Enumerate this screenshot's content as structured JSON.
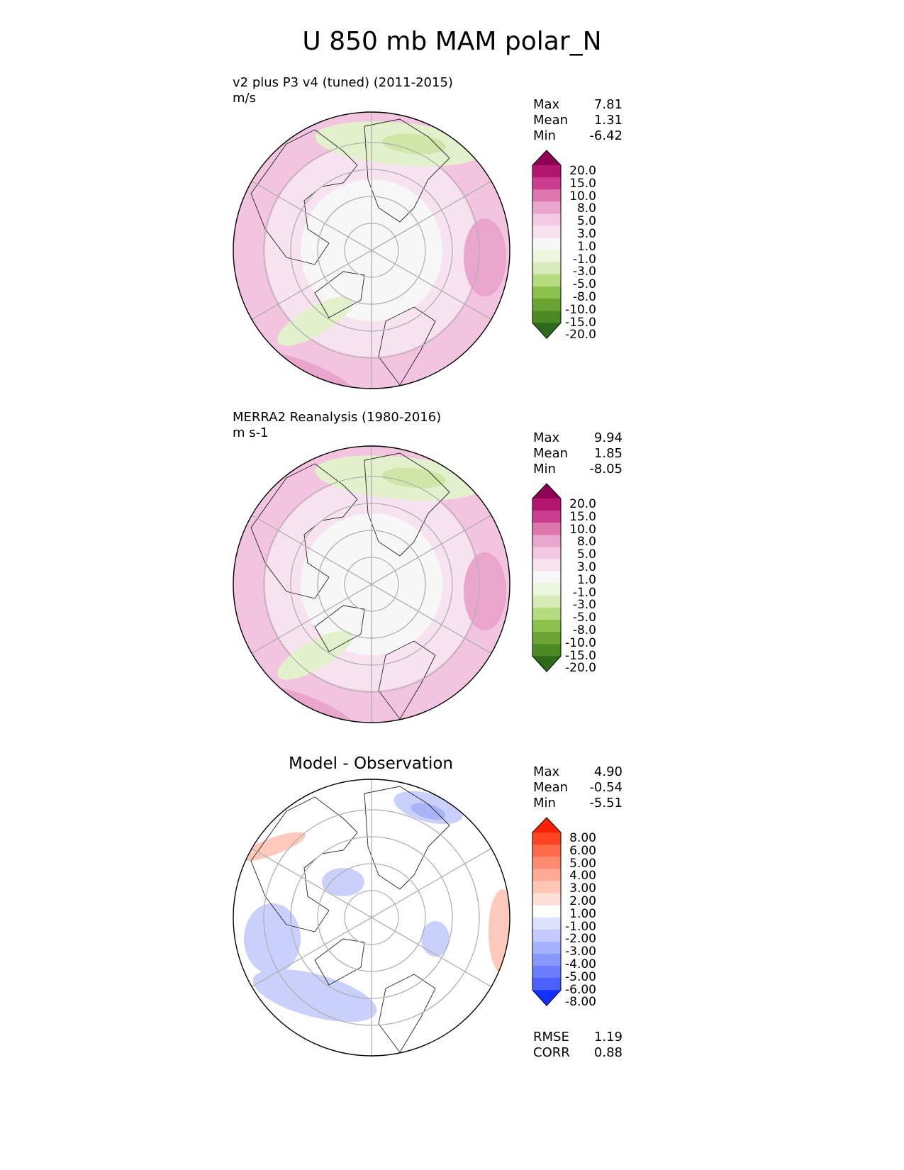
{
  "figure_title": "U 850 mb MAM polar_N",
  "chart_data": [
    {
      "type": "heatmap",
      "projection": "north polar stereographic",
      "title": "v2 plus P3 v4 (tuned) (2011-2015)",
      "units": "m/s",
      "stats": {
        "max_label": "Max",
        "max": "7.81",
        "mean_label": "Mean",
        "mean": "1.31",
        "min_label": "Min",
        "min": "-6.42"
      },
      "colorbar_levels": [
        "20.0",
        "15.0",
        "10.0",
        "8.0",
        "5.0",
        "3.0",
        "1.0",
        "-1.0",
        "-3.0",
        "-5.0",
        "-8.0",
        "-10.0",
        "-15.0",
        "-20.0"
      ],
      "colorbar_colors": [
        "#8e0152",
        "#b4156e",
        "#cb3d8e",
        "#de77ae",
        "#eaa5cc",
        "#f4c9e3",
        "#f9e2ef",
        "#f7f7f7",
        "#ecf5dd",
        "#d6ebb7",
        "#b6dc80",
        "#8cc24c",
        "#6ba435",
        "#4c8a24",
        "#2d6a1a"
      ]
    },
    {
      "type": "heatmap",
      "projection": "north polar stereographic",
      "title": "MERRA2 Reanalysis (1980-2016)",
      "units": "m s-1",
      "stats": {
        "max_label": "Max",
        "max": "9.94",
        "mean_label": "Mean",
        "mean": "1.85",
        "min_label": "Min",
        "min": "-8.05"
      },
      "colorbar_levels": [
        "20.0",
        "15.0",
        "10.0",
        "8.0",
        "5.0",
        "3.0",
        "1.0",
        "-1.0",
        "-3.0",
        "-5.0",
        "-8.0",
        "-10.0",
        "-15.0",
        "-20.0"
      ],
      "colorbar_colors": [
        "#8e0152",
        "#b4156e",
        "#cb3d8e",
        "#de77ae",
        "#eaa5cc",
        "#f4c9e3",
        "#f9e2ef",
        "#f7f7f7",
        "#ecf5dd",
        "#d6ebb7",
        "#b6dc80",
        "#8cc24c",
        "#6ba435",
        "#4c8a24",
        "#2d6a1a"
      ]
    },
    {
      "type": "heatmap",
      "projection": "north polar stereographic",
      "title": "Model - Observation",
      "stats": {
        "max_label": "Max",
        "max": "4.90",
        "mean_label": "Mean",
        "mean": "-0.54",
        "min_label": "Min",
        "min": "-5.51",
        "rmse_label": "RMSE",
        "rmse": "1.19",
        "corr_label": "CORR",
        "corr": "0.88"
      },
      "colorbar_levels": [
        "8.00",
        "6.00",
        "5.00",
        "4.00",
        "3.00",
        "2.00",
        "1.00",
        "-1.00",
        "-2.00",
        "-3.00",
        "-4.00",
        "-5.00",
        "-6.00",
        "-8.00"
      ],
      "colorbar_colors": [
        "#ff2200",
        "#ff4422",
        "#ff6a4a",
        "#ff8a70",
        "#ffaa94",
        "#ffc6b6",
        "#ffe0d6",
        "#ffffff",
        "#dde2ff",
        "#c2caff",
        "#a5b2ff",
        "#8898ff",
        "#6a7dff",
        "#4b60ff",
        "#1230ff"
      ]
    }
  ]
}
